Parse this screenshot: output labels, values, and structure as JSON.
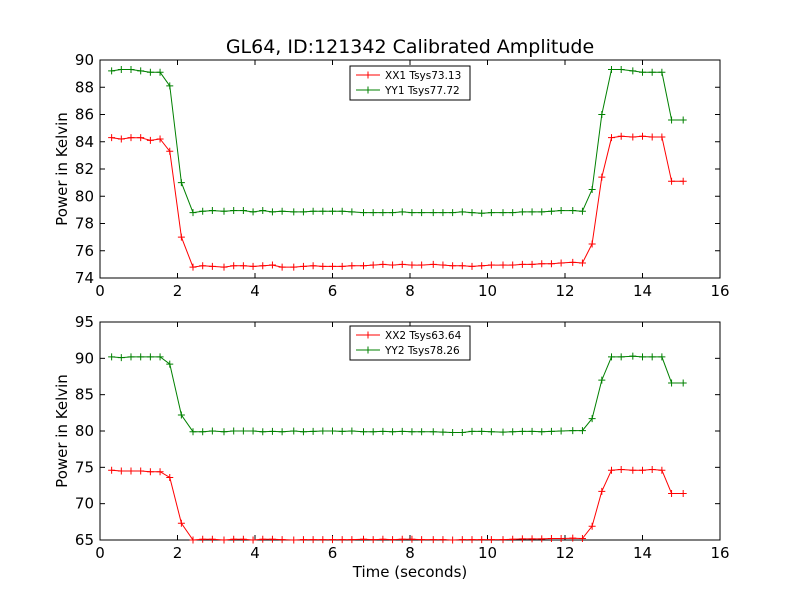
{
  "figure": {
    "title": "GL64, ID:121342 Calibrated Amplitude",
    "xlabel": "Time (seconds)"
  },
  "chart_data": [
    {
      "type": "line",
      "title": "GL64, ID:121342 Calibrated Amplitude",
      "xlabel": "",
      "ylabel": "Power in Kelvin",
      "xlim": [
        0,
        16
      ],
      "ylim": [
        74,
        90
      ],
      "xticks": [
        0,
        2,
        4,
        6,
        8,
        10,
        12,
        14,
        16
      ],
      "yticks": [
        74,
        76,
        78,
        80,
        82,
        84,
        86,
        88,
        90
      ],
      "grid": false,
      "legend": "top-center",
      "x": [
        0.3,
        0.55,
        0.8,
        1.05,
        1.3,
        1.55,
        1.8,
        2.1,
        2.4,
        2.65,
        2.9,
        3.2,
        3.45,
        3.7,
        3.95,
        4.2,
        4.45,
        4.7,
        5.0,
        5.25,
        5.5,
        5.75,
        6.0,
        6.25,
        6.5,
        6.8,
        7.05,
        7.3,
        7.55,
        7.8,
        8.05,
        8.3,
        8.6,
        8.85,
        9.1,
        9.35,
        9.6,
        9.85,
        10.1,
        10.4,
        10.65,
        10.9,
        11.15,
        11.4,
        11.65,
        11.9,
        12.2,
        12.45,
        12.7,
        12.95,
        13.2,
        13.45,
        13.75,
        14.0,
        14.25,
        14.5,
        14.75,
        15.05
      ],
      "series": [
        {
          "name": "XX1 Tsys73.13",
          "color": "#ff0000",
          "values": [
            84.3,
            84.2,
            84.3,
            84.3,
            84.1,
            84.2,
            83.3,
            77.0,
            74.8,
            74.9,
            74.85,
            74.8,
            74.9,
            74.9,
            74.85,
            74.9,
            74.95,
            74.8,
            74.8,
            74.85,
            74.9,
            74.85,
            74.85,
            74.85,
            74.9,
            74.9,
            74.95,
            75.0,
            74.95,
            75.0,
            74.95,
            74.95,
            75.0,
            74.95,
            74.9,
            74.9,
            74.85,
            74.9,
            74.95,
            74.95,
            74.95,
            75.0,
            75.0,
            75.05,
            75.05,
            75.1,
            75.15,
            75.1,
            76.5,
            81.4,
            84.3,
            84.4,
            84.35,
            84.4,
            84.35,
            84.35,
            81.1,
            81.1
          ],
          "values_note": ""
        },
        {
          "name": "YY1 Tsys77.72",
          "color": "#008000",
          "values": [
            89.2,
            89.3,
            89.3,
            89.2,
            89.1,
            89.1,
            88.1,
            81.0,
            78.8,
            78.9,
            78.95,
            78.9,
            78.95,
            78.95,
            78.85,
            78.95,
            78.85,
            78.9,
            78.85,
            78.85,
            78.9,
            78.9,
            78.9,
            78.9,
            78.85,
            78.8,
            78.8,
            78.8,
            78.8,
            78.85,
            78.8,
            78.8,
            78.8,
            78.8,
            78.8,
            78.85,
            78.8,
            78.75,
            78.8,
            78.8,
            78.8,
            78.85,
            78.85,
            78.85,
            78.9,
            78.95,
            78.95,
            78.9,
            80.5,
            86.0,
            89.3,
            89.3,
            89.2,
            89.1,
            89.1,
            85.6,
            85.6,
            85.6
          ]
        }
      ]
    },
    {
      "type": "line",
      "title": "",
      "xlabel": "Time (seconds)",
      "ylabel": "Power in Kelvin",
      "xlim": [
        0,
        16
      ],
      "ylim": [
        65,
        95
      ],
      "xticks": [
        0,
        2,
        4,
        6,
        8,
        10,
        12,
        14,
        16
      ],
      "yticks": [
        65,
        70,
        75,
        80,
        85,
        90,
        95
      ],
      "grid": false,
      "legend": "top-center",
      "x": [
        0.3,
        0.55,
        0.8,
        1.05,
        1.3,
        1.55,
        1.8,
        2.1,
        2.4,
        2.65,
        2.9,
        3.2,
        3.45,
        3.7,
        3.95,
        4.2,
        4.45,
        4.7,
        5.0,
        5.25,
        5.5,
        5.75,
        6.0,
        6.25,
        6.5,
        6.8,
        7.05,
        7.3,
        7.55,
        7.8,
        8.05,
        8.3,
        8.6,
        8.85,
        9.1,
        9.35,
        9.6,
        9.85,
        10.1,
        10.4,
        10.65,
        10.9,
        11.15,
        11.4,
        11.65,
        11.9,
        12.2,
        12.45,
        12.7,
        12.95,
        13.2,
        13.45,
        13.75,
        14.0,
        14.25,
        14.5,
        14.75,
        15.05
      ],
      "series": [
        {
          "name": "XX2 Tsys63.64",
          "color": "#ff0000",
          "values": [
            74.6,
            74.5,
            74.5,
            74.5,
            74.4,
            74.4,
            73.6,
            67.3,
            65.0,
            65.1,
            65.1,
            65.0,
            65.1,
            65.1,
            65.0,
            65.1,
            65.1,
            65.05,
            65.0,
            65.05,
            65.05,
            65.05,
            65.05,
            65.05,
            65.05,
            65.1,
            65.05,
            65.1,
            65.05,
            65.1,
            65.1,
            65.05,
            65.05,
            65.05,
            65.0,
            65.05,
            65.05,
            65.05,
            65.05,
            65.05,
            65.1,
            65.15,
            65.15,
            65.15,
            65.2,
            65.2,
            65.25,
            65.2,
            66.9,
            71.7,
            74.6,
            74.7,
            74.6,
            74.6,
            74.7,
            74.6,
            71.4,
            71.4
          ],
          "values_note": ""
        },
        {
          "name": "YY2 Tsys78.26",
          "color": "#008000",
          "values": [
            90.2,
            90.1,
            90.2,
            90.2,
            90.2,
            90.2,
            89.2,
            82.2,
            79.9,
            79.9,
            80.0,
            79.9,
            80.0,
            80.0,
            80.0,
            79.9,
            79.95,
            79.9,
            80.0,
            79.9,
            79.95,
            80.0,
            80.0,
            79.95,
            80.0,
            79.9,
            79.9,
            79.95,
            79.9,
            79.95,
            79.9,
            79.9,
            79.9,
            79.85,
            79.8,
            79.8,
            79.95,
            79.95,
            79.9,
            79.85,
            79.9,
            79.95,
            79.95,
            79.9,
            79.95,
            80.0,
            80.05,
            80.05,
            81.7,
            87.0,
            90.2,
            90.2,
            90.3,
            90.2,
            90.2,
            90.2,
            86.6,
            86.6
          ]
        }
      ]
    }
  ]
}
